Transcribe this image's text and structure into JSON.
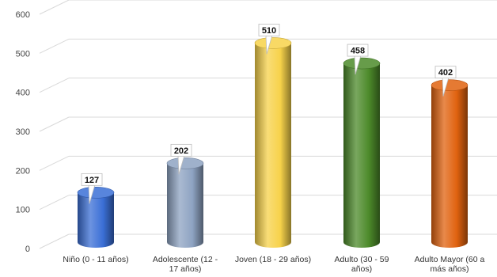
{
  "chart_data": {
    "type": "bar",
    "categories": [
      [
        "Niño (0 - 11 años)"
      ],
      [
        "Adolescente (12 -",
        "17 años)"
      ],
      [
        "Joven (18 - 29 años)"
      ],
      [
        "Adulto (30 - 59",
        "años)"
      ],
      [
        "Adulto Mayor (60 a",
        "más años)"
      ]
    ],
    "values": [
      127,
      202,
      510,
      458,
      402
    ],
    "data_labels": [
      "127",
      "202",
      "510",
      "458",
      "402"
    ],
    "ylim": [
      0,
      600
    ],
    "yticks": [
      "0",
      "100",
      "200",
      "300",
      "400",
      "500",
      "600"
    ],
    "grid": true,
    "bar_shape": "cylinder",
    "colors": [
      "#3b6fd6",
      "#8ea3c2",
      "#f7d24a",
      "#4c8a2a",
      "#e0620f"
    ]
  }
}
